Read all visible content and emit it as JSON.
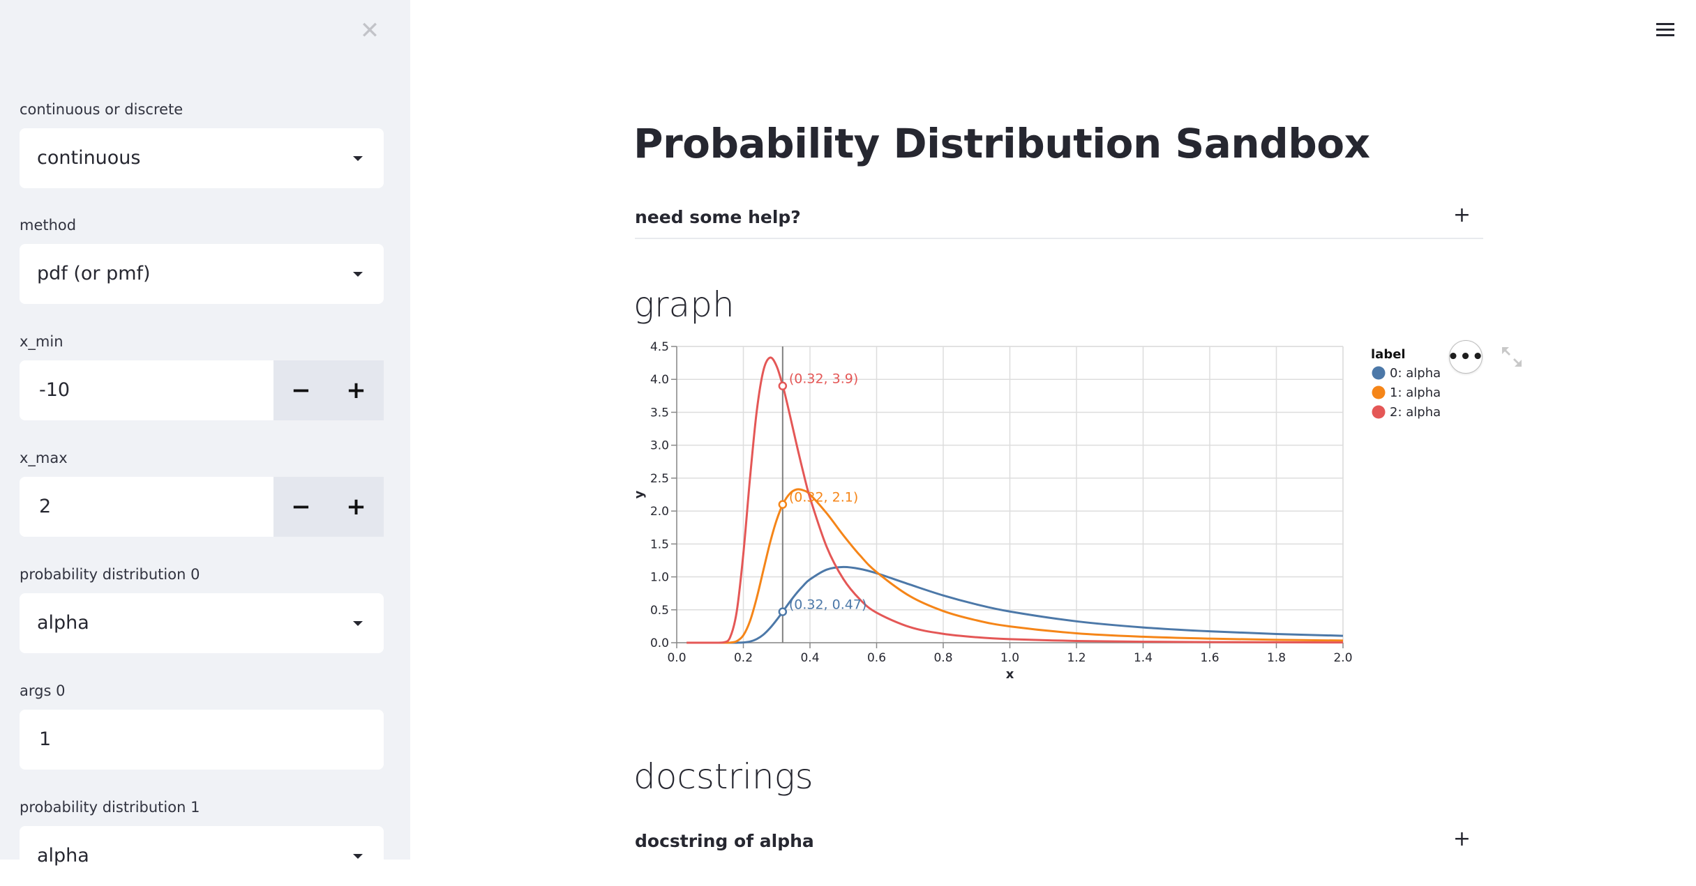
{
  "sidebar": {
    "close_icon": "close-icon",
    "fields": [
      {
        "label": "continuous or discrete",
        "type": "select",
        "value": "continuous"
      },
      {
        "label": "method",
        "type": "select",
        "value": "pdf (or pmf)"
      },
      {
        "label": "x_min",
        "type": "number",
        "value": "-10",
        "minus": "−",
        "plus": "+"
      },
      {
        "label": "x_max",
        "type": "number",
        "value": "2",
        "minus": "−",
        "plus": "+"
      },
      {
        "label": "probability distribution 0",
        "type": "select",
        "value": "alpha"
      },
      {
        "label": "args 0",
        "type": "text",
        "value": "1"
      },
      {
        "label": "probability distribution 1",
        "type": "select",
        "value": "alpha"
      }
    ]
  },
  "header": {
    "menu_icon": "hamburger-icon"
  },
  "main": {
    "title": "Probability Distribution Sandbox",
    "help_expander": {
      "label": "need some help?",
      "icon": "+"
    },
    "graph_heading": "graph",
    "chart_actions": {
      "menu": "•••",
      "expand_icon": "expand-icon"
    },
    "docstrings_heading": "docstrings",
    "docstring_expander": {
      "label": "docstring of alpha",
      "icon": "+"
    }
  },
  "chart_data": {
    "type": "line",
    "title": "",
    "xlabel": "x",
    "ylabel": "y",
    "xlim": [
      0,
      2.0
    ],
    "ylim": [
      0,
      4.5
    ],
    "xticks": [
      "0.0",
      "0.2",
      "0.4",
      "0.6",
      "0.8",
      "1.0",
      "1.2",
      "1.4",
      "1.6",
      "1.8",
      "2.0"
    ],
    "yticks": [
      "0.0",
      "0.5",
      "1.0",
      "1.5",
      "2.0",
      "2.5",
      "3.0",
      "3.5",
      "4.0",
      "4.5"
    ],
    "grid": true,
    "legend": {
      "title": "label",
      "position": "right"
    },
    "x": [
      0.03,
      0.06,
      0.09,
      0.12,
      0.14,
      0.16,
      0.18,
      0.2,
      0.22,
      0.24,
      0.26,
      0.28,
      0.3,
      0.32,
      0.34,
      0.36,
      0.38,
      0.4,
      0.45,
      0.5,
      0.55,
      0.6,
      0.7,
      0.8,
      0.9,
      1.0,
      1.2,
      1.4,
      1.6,
      1.8,
      2.0
    ],
    "series": [
      {
        "name": "0: alpha",
        "color": "#4c78a8",
        "values": [
          0,
          0,
          0,
          0,
          0,
          0,
          0.0005,
          0.004,
          0.018,
          0.055,
          0.122,
          0.222,
          0.346,
          0.484,
          0.624,
          0.754,
          0.867,
          0.962,
          1.11,
          1.15,
          1.121,
          1.055,
          0.883,
          0.718,
          0.582,
          0.474,
          0.325,
          0.232,
          0.173,
          0.133,
          0.105
        ]
      },
      {
        "name": "1: alpha",
        "color": "#f58518",
        "values": [
          0,
          0,
          0,
          0,
          0,
          0.002,
          0.023,
          0.113,
          0.33,
          0.678,
          1.099,
          1.516,
          1.864,
          2.117,
          2.267,
          2.328,
          2.315,
          2.251,
          1.967,
          1.633,
          1.327,
          1.073,
          0.707,
          0.481,
          0.34,
          0.248,
          0.143,
          0.091,
          0.062,
          0.044,
          0.033
        ]
      },
      {
        "name": "2: alpha",
        "color": "#e45756",
        "values": [
          0,
          0,
          0,
          0,
          0.004,
          0.079,
          0.47,
          1.352,
          2.501,
          3.509,
          4.131,
          4.33,
          4.199,
          3.871,
          3.45,
          3.007,
          2.585,
          2.203,
          1.458,
          0.969,
          0.657,
          0.456,
          0.237,
          0.135,
          0.083,
          0.054,
          0.027,
          0.015,
          0.009,
          0.006,
          0.004
        ]
      }
    ],
    "rule_x": 0.318,
    "tooltips": [
      {
        "series": 0,
        "x": 0.318,
        "y": 0.47,
        "text": "(0.32, 0.47)"
      },
      {
        "series": 1,
        "x": 0.318,
        "y": 2.1,
        "text": "(0.32, 2.1)"
      },
      {
        "series": 2,
        "x": 0.318,
        "y": 3.9,
        "text": "(0.32, 3.9)"
      }
    ]
  }
}
